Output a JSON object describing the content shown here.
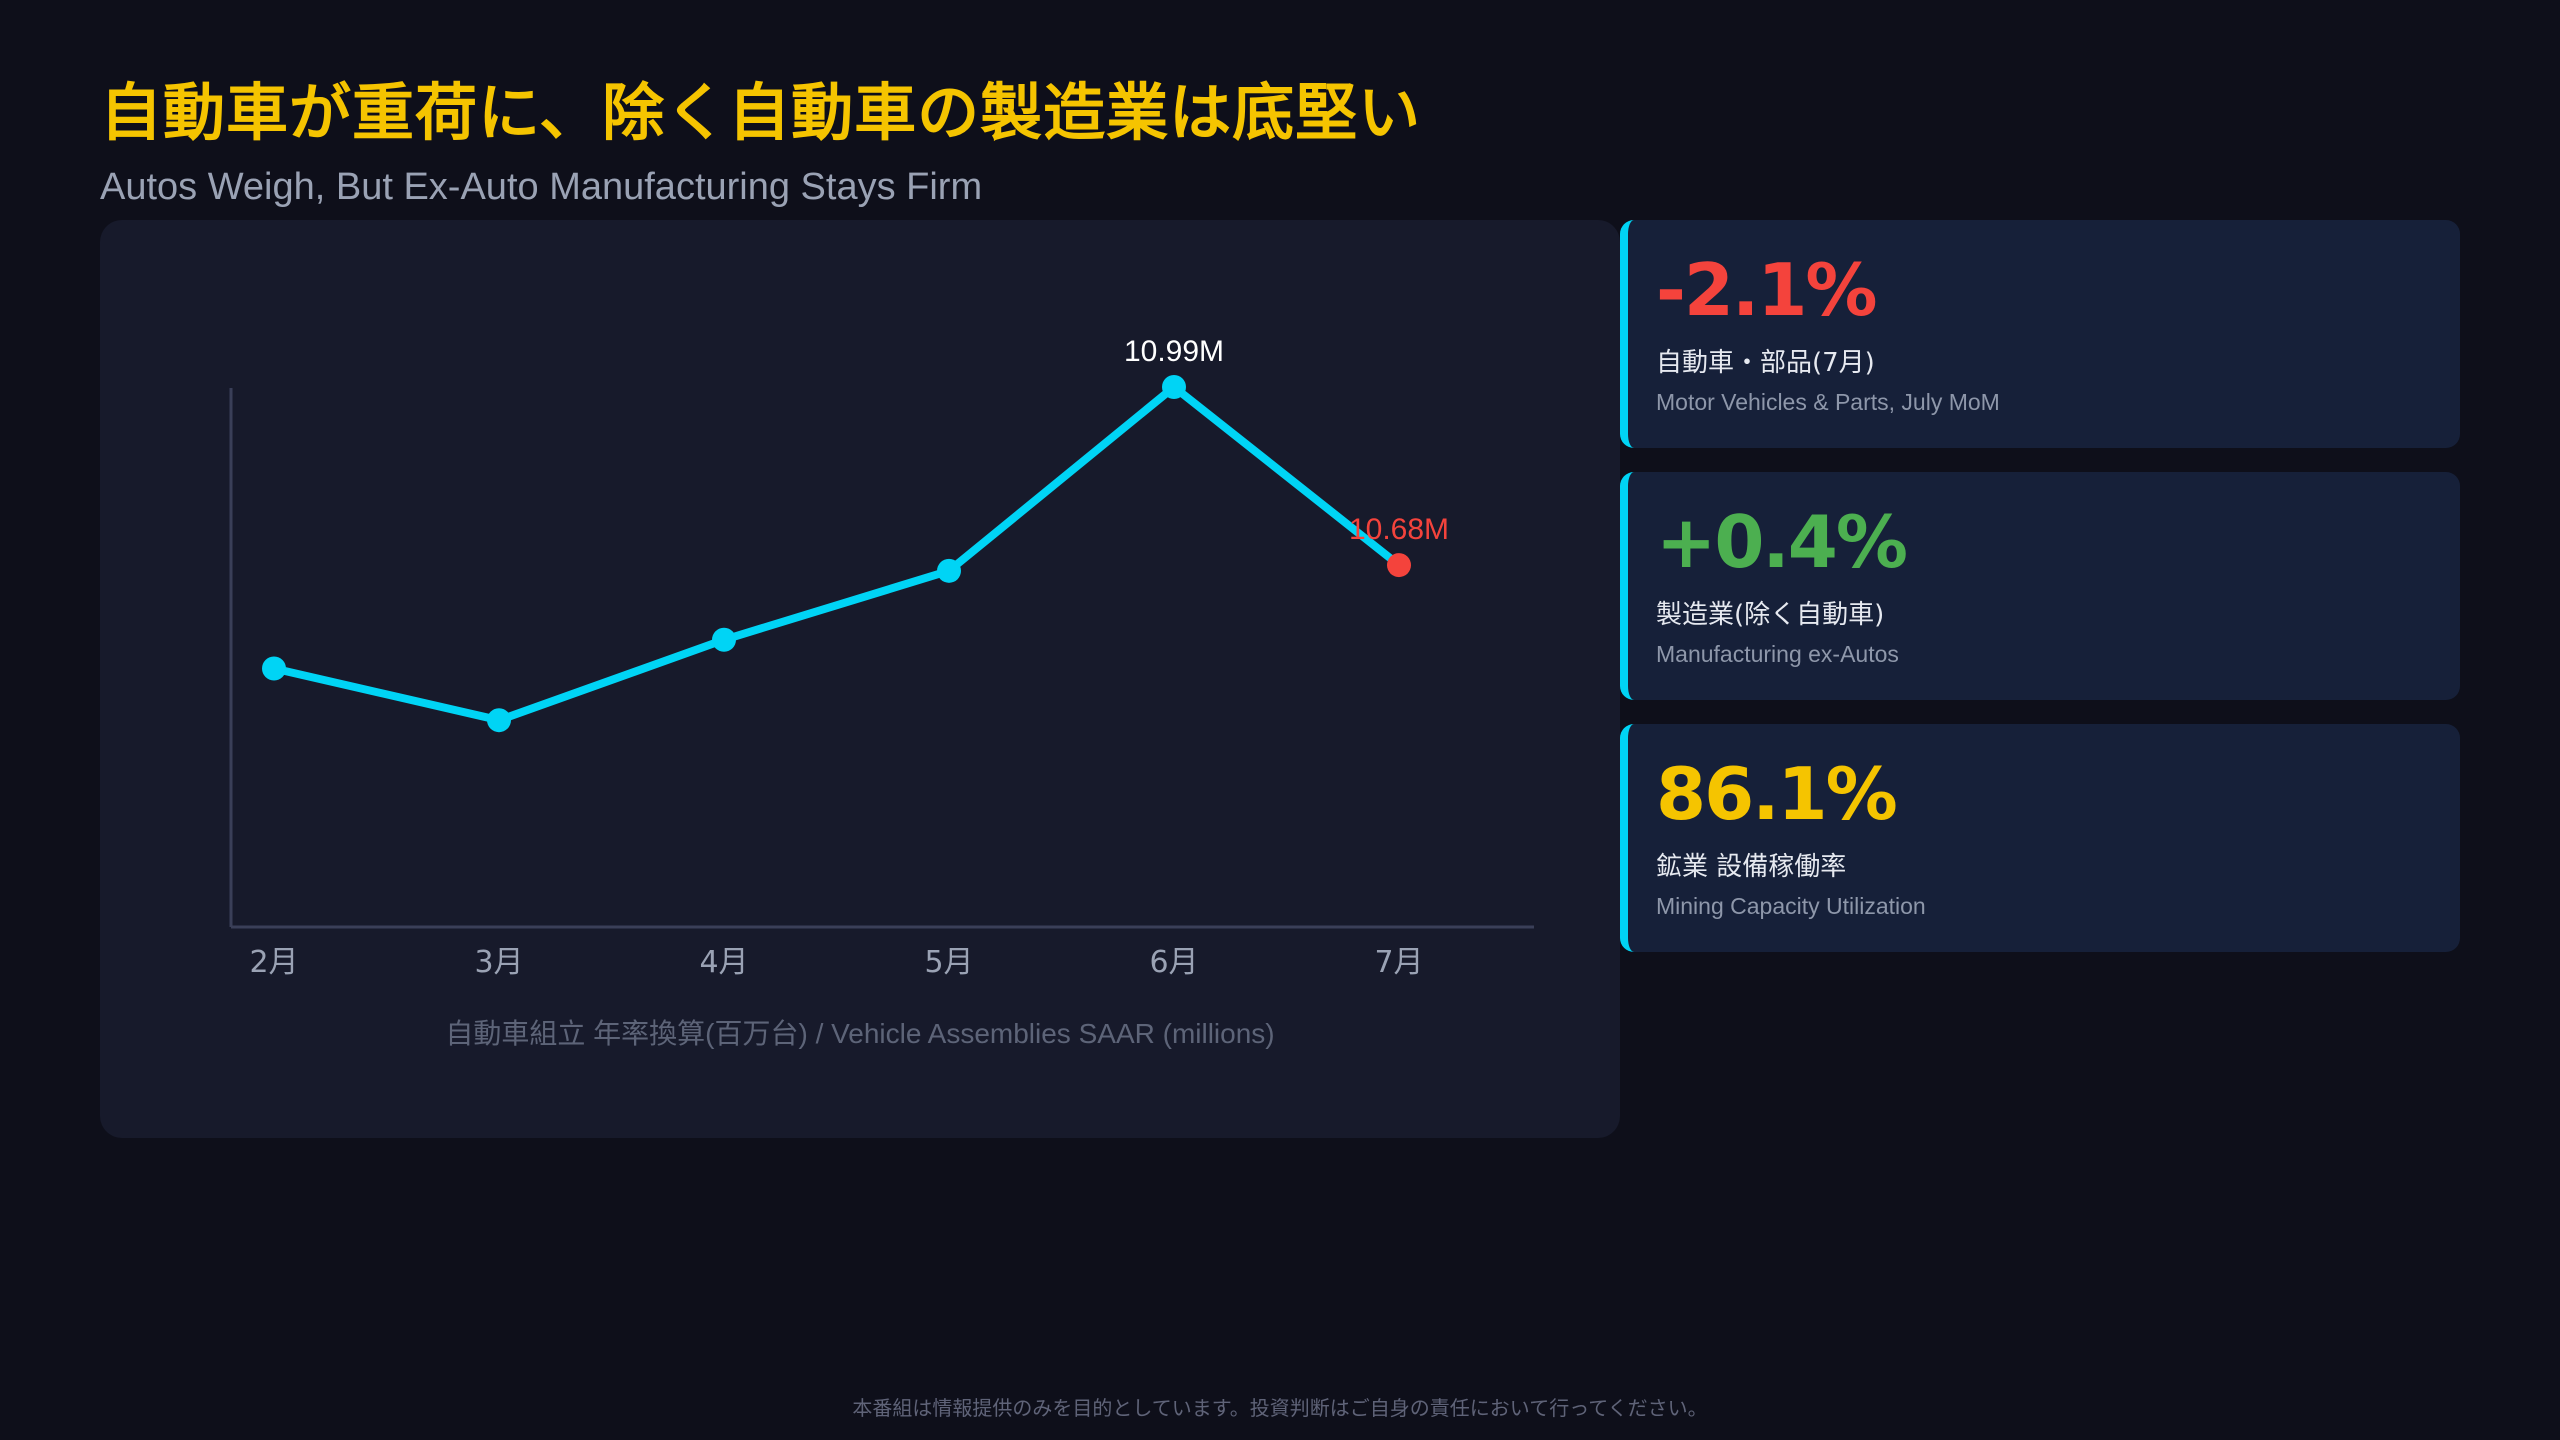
{
  "header": {
    "title": "自動車が重荷に、除く自動車の製造業は底堅い",
    "subtitle": "Autos Weigh, But Ex-Auto Manufacturing Stays Firm"
  },
  "chart_data": {
    "type": "line",
    "categories": [
      "2月",
      "3月",
      "4月",
      "5月",
      "6月",
      "7月"
    ],
    "series": [
      {
        "values": [
          10.5,
          10.41,
          10.55,
          10.67,
          10.99,
          10.68
        ]
      }
    ],
    "data_labels": [
      {
        "index": 4,
        "text": "10.99M"
      },
      {
        "index": 5,
        "text": "10.68M"
      }
    ],
    "caption": "自動車組立 年率換算(百万台) / Vehicle Assemblies SAAR (millions)",
    "ylim": [
      10.05,
      10.99
    ],
    "colors": {
      "line": "#00d4f5",
      "highlight": "#f4433c",
      "label": "#ffffff"
    }
  },
  "kpis": [
    {
      "value": "-2.1%",
      "label": "自動車・部品(7月)",
      "sublabel": "Motor Vehicles & Parts, July MoM",
      "color": "#f4433c"
    },
    {
      "value": "+0.4%",
      "label": "製造業(除く自動車)",
      "sublabel": "Manufacturing ex-Autos",
      "color": "#4caf50"
    },
    {
      "value": "86.1%",
      "label": "鉱業 設備稼働率",
      "sublabel": "Mining Capacity Utilization",
      "color": "#f5c400"
    }
  ],
  "footer": {
    "disclaimer": "本番組は情報提供のみを目的としています。投資判断はご自身の責任において行ってください。"
  }
}
